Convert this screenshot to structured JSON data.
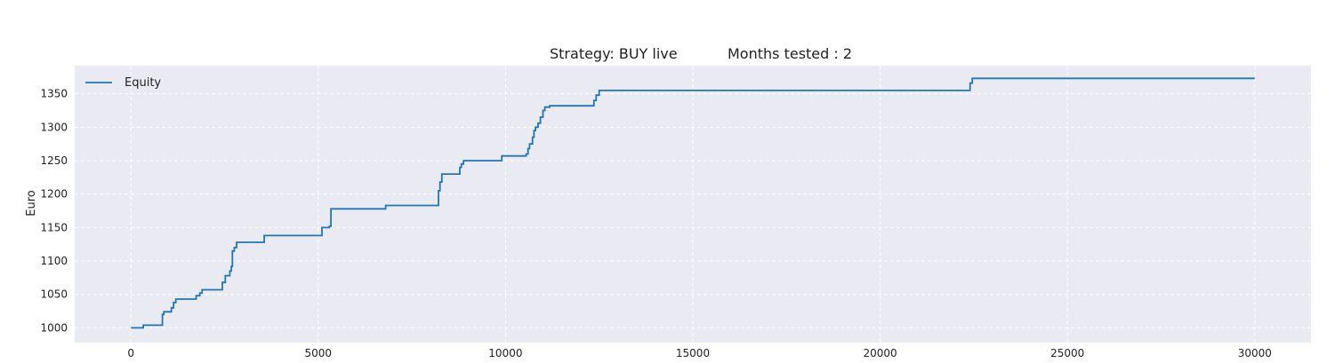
{
  "chart_data": {
    "type": "line",
    "title_left": "Strategy:  BUY live",
    "title_right": "Months tested : 2",
    "xlabel": "",
    "ylabel": "Euro",
    "xlim": [
      -1500,
      31500
    ],
    "ylim": [
      978,
      1392
    ],
    "x_ticks": [
      0,
      5000,
      10000,
      15000,
      20000,
      25000,
      30000
    ],
    "x_tick_labels": [
      "0",
      "5000",
      "10000",
      "15000",
      "20000",
      "25000",
      "30000"
    ],
    "y_ticks": [
      1000,
      1050,
      1100,
      1150,
      1200,
      1250,
      1300,
      1350
    ],
    "y_tick_labels": [
      "1000",
      "1050",
      "1100",
      "1150",
      "1200",
      "1250",
      "1300",
      "1350"
    ],
    "grid": true,
    "legend_position": "top-left",
    "colors": {
      "line": "#1f77b4",
      "plot_bg": "#eaeaf2",
      "grid": "#ffffff"
    },
    "series": [
      {
        "name": "Equity",
        "x": [
          0,
          300,
          330,
          800,
          840,
          880,
          920,
          1080,
          1140,
          1200,
          1660,
          1740,
          1840,
          1900,
          2400,
          2440,
          2520,
          2640,
          2680,
          2710,
          2760,
          2820,
          3500,
          3560,
          5060,
          5100,
          5300,
          5340,
          6780,
          6800,
          8180,
          8210,
          8250,
          8300,
          8740,
          8780,
          8820,
          8880,
          9850,
          9900,
          10550,
          10600,
          10640,
          10720,
          10760,
          10800,
          10870,
          10930,
          11000,
          11050,
          11180,
          12300,
          12360,
          12420,
          12500,
          22350,
          22400,
          22460,
          30000
        ],
        "y": [
          1000,
          1000,
          1004,
          1004,
          1020,
          1024,
          1024,
          1030,
          1038,
          1043,
          1043,
          1048,
          1052,
          1057,
          1057,
          1068,
          1078,
          1085,
          1092,
          1115,
          1120,
          1128,
          1128,
          1138,
          1138,
          1150,
          1152,
          1178,
          1178,
          1183,
          1183,
          1205,
          1218,
          1230,
          1230,
          1240,
          1245,
          1250,
          1250,
          1257,
          1260,
          1268,
          1275,
          1285,
          1295,
          1300,
          1306,
          1315,
          1325,
          1330,
          1332,
          1332,
          1340,
          1348,
          1355,
          1355,
          1366,
          1373,
          1373
        ]
      }
    ]
  }
}
